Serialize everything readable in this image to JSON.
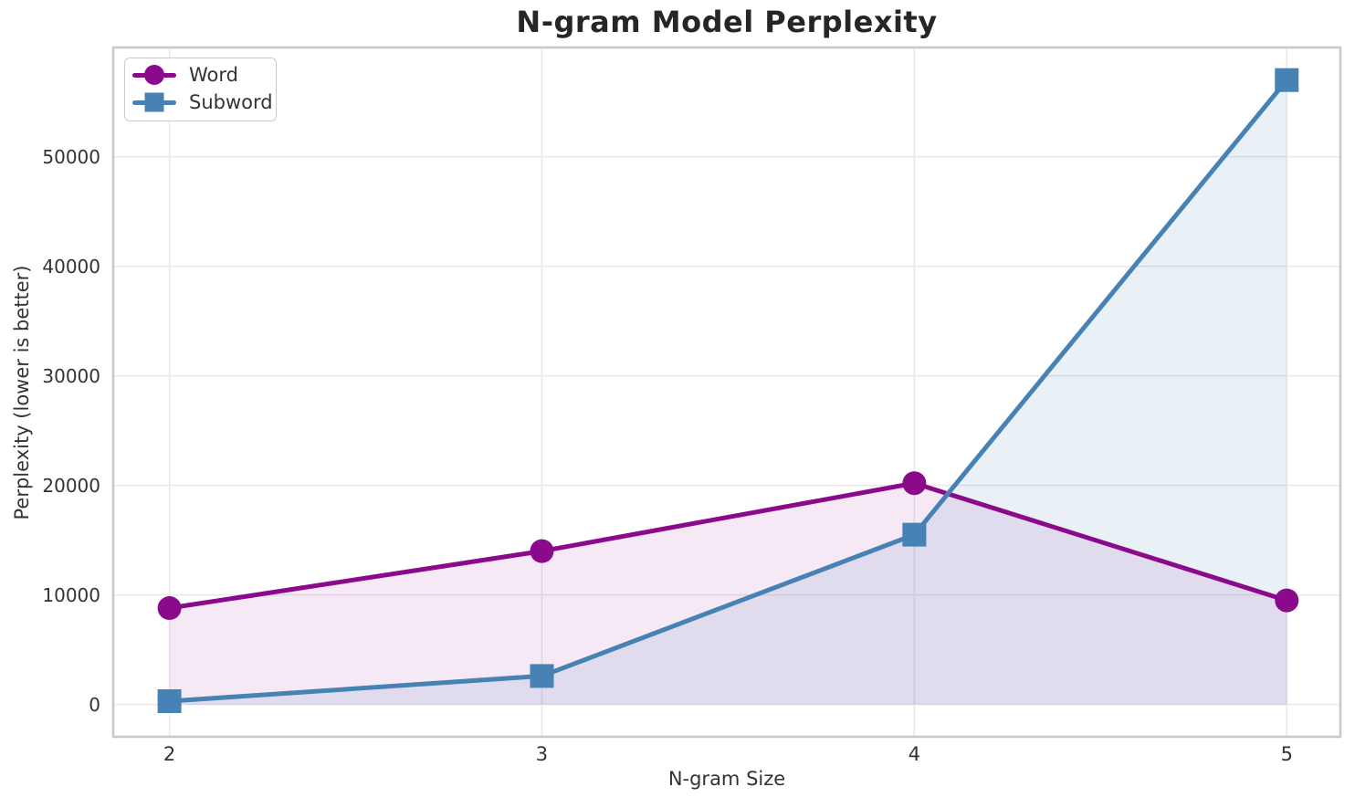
{
  "chart_data": {
    "type": "line",
    "title": "N-gram Model Perplexity",
    "xlabel": "N-gram Size",
    "ylabel": "Perplexity (lower is better)",
    "x": [
      2,
      3,
      4,
      5
    ],
    "series": [
      {
        "name": "Word",
        "marker": "circle",
        "color": "#8B0A8B",
        "fill_alpha": 0.09,
        "values": [
          8800,
          14000,
          20200,
          9500
        ]
      },
      {
        "name": "Subword",
        "marker": "square",
        "color": "#4682B4",
        "fill_alpha": 0.12,
        "values": [
          300,
          2600,
          15500,
          57000
        ]
      }
    ],
    "xticks": [
      2,
      3,
      4,
      5
    ],
    "yticks": [
      0,
      10000,
      20000,
      30000,
      40000,
      50000
    ],
    "xlim": [
      1.849,
      5.144
    ],
    "ylim": [
      -2950,
      59975
    ],
    "grid": true,
    "area_fill_to_zero": true,
    "legend_position": "upper left",
    "legend_entries": [
      "Word",
      "Subword"
    ]
  }
}
